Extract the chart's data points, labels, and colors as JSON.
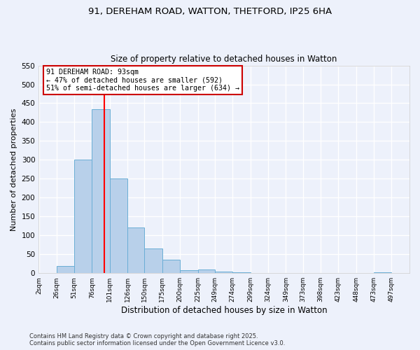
{
  "title_line1": "91, DEREHAM ROAD, WATTON, THETFORD, IP25 6HA",
  "title_line2": "Size of property relative to detached houses in Watton",
  "xlabel": "Distribution of detached houses by size in Watton",
  "ylabel": "Number of detached properties",
  "bins": [
    2,
    26,
    51,
    76,
    101,
    126,
    150,
    175,
    200,
    225,
    249,
    274,
    299,
    324,
    349,
    373,
    398,
    423,
    448,
    473,
    497
  ],
  "bin_labels": [
    "2sqm",
    "26sqm",
    "51sqm",
    "76sqm",
    "101sqm",
    "126sqm",
    "150sqm",
    "175sqm",
    "200sqm",
    "225sqm",
    "249sqm",
    "274sqm",
    "299sqm",
    "324sqm",
    "349sqm",
    "373sqm",
    "398sqm",
    "423sqm",
    "448sqm",
    "473sqm",
    "497sqm"
  ],
  "values": [
    0,
    18,
    300,
    435,
    250,
    120,
    65,
    35,
    8,
    10,
    4,
    3,
    0,
    0,
    0,
    0,
    0,
    0,
    0,
    3,
    0
  ],
  "bar_color": "#b8d0ea",
  "bar_edge_color": "#6aaed6",
  "ylim": [
    0,
    550
  ],
  "yticks": [
    0,
    50,
    100,
    150,
    200,
    250,
    300,
    350,
    400,
    450,
    500,
    550
  ],
  "red_line_x": 93,
  "annotation_line1": "91 DEREHAM ROAD: 93sqm",
  "annotation_line2": "← 47% of detached houses are smaller (592)",
  "annotation_line3": "51% of semi-detached houses are larger (634) →",
  "annotation_box_color": "#ffffff",
  "annotation_box_edge": "#cc0000",
  "footer_line1": "Contains HM Land Registry data © Crown copyright and database right 2025.",
  "footer_line2": "Contains public sector information licensed under the Open Government Licence v3.0.",
  "bg_color": "#edf1fb",
  "plot_bg_color": "#edf1fb",
  "grid_color": "#ffffff"
}
